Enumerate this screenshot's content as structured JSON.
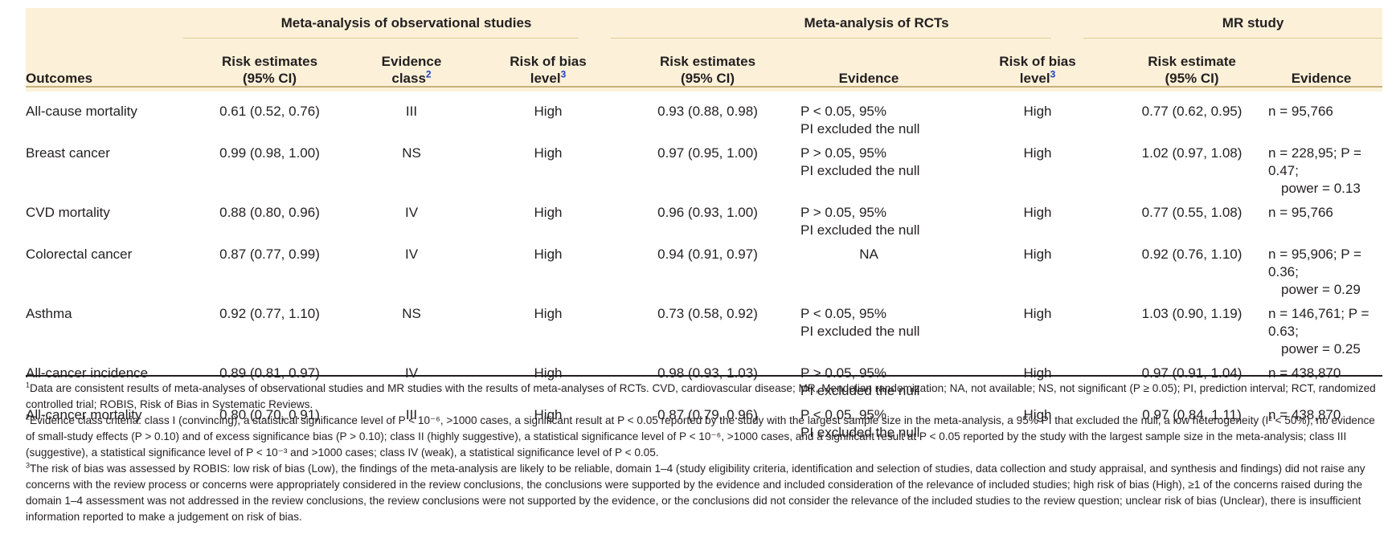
{
  "header": {
    "groups": [
      "Meta-analysis of observational studies",
      "Meta-analysis of RCTs",
      "MR study"
    ],
    "outcomes_label": "Outcomes",
    "obs": {
      "risk_estimates": "Risk estimates",
      "risk_estimates_ci": "(95% CI)",
      "evidence_class": "Evidence",
      "evidence_class_2": "class",
      "evidence_class_sup": "2",
      "risk_of_bias": "Risk of bias",
      "risk_of_bias_2": "level",
      "risk_of_bias_sup": "3"
    },
    "rct": {
      "risk_estimates": "Risk estimates",
      "risk_estimates_ci": "(95% CI)",
      "evidence": "Evidence",
      "risk_of_bias": "Risk of bias",
      "risk_of_bias_2": "level",
      "risk_of_bias_sup": "3"
    },
    "mr": {
      "risk_estimate": "Risk estimate",
      "risk_estimate_ci": "(95% CI)",
      "evidence": "Evidence"
    }
  },
  "rows": [
    {
      "outcome": "All-cause mortality",
      "obs_risk": "0.61 (0.52, 0.76)",
      "obs_class": "III",
      "obs_bias": "High",
      "rct_risk": "0.93 (0.88, 0.98)",
      "rct_ev1": "P < 0.05, 95%",
      "rct_ev2": "PI excluded the null",
      "rct_bias": "High",
      "mr_risk": "0.77 (0.62, 0.95)",
      "mr_ev1": "n = 95,766",
      "mr_ev2": ""
    },
    {
      "outcome": "Breast cancer",
      "obs_risk": "0.99 (0.98, 1.00)",
      "obs_class": "NS",
      "obs_bias": "High",
      "rct_risk": "0.97 (0.95, 1.00)",
      "rct_ev1": "P > 0.05, 95%",
      "rct_ev2": "PI excluded the null",
      "rct_bias": "High",
      "mr_risk": "1.02 (0.97, 1.08)",
      "mr_ev1": "n = 228,95; P = 0.47;",
      "mr_ev2": "power = 0.13"
    },
    {
      "outcome": "CVD mortality",
      "obs_risk": "0.88 (0.80, 0.96)",
      "obs_class": "IV",
      "obs_bias": "High",
      "rct_risk": "0.96 (0.93, 1.00)",
      "rct_ev1": "P > 0.05, 95%",
      "rct_ev2": "PI excluded the null",
      "rct_bias": "High",
      "mr_risk": "0.77 (0.55, 1.08)",
      "mr_ev1": "n = 95,766",
      "mr_ev2": ""
    },
    {
      "outcome": "Colorectal cancer",
      "obs_risk": "0.87 (0.77, 0.99)",
      "obs_class": "IV",
      "obs_bias": "High",
      "rct_risk": "0.94 (0.91, 0.97)",
      "rct_ev1": "NA",
      "rct_ev2": "",
      "rct_bias": "High",
      "mr_risk": "0.92 (0.76, 1.10)",
      "mr_ev1": "n = 95,906; P = 0.36;",
      "mr_ev2": "power = 0.29"
    },
    {
      "outcome": "Asthma",
      "obs_risk": "0.92 (0.77, 1.10)",
      "obs_class": "NS",
      "obs_bias": "High",
      "rct_risk": "0.73 (0.58, 0.92)",
      "rct_ev1": "P < 0.05, 95%",
      "rct_ev2": "PI excluded the null",
      "rct_bias": "High",
      "mr_risk": "1.03 (0.90, 1.19)",
      "mr_ev1": "n = 146,761; P = 0.63;",
      "mr_ev2": "power = 0.25"
    },
    {
      "outcome": "All-cancer incidence",
      "obs_risk": "0.89 (0.81, 0.97)",
      "obs_class": "IV",
      "obs_bias": "High",
      "rct_risk": "0.98 (0.93, 1.03)",
      "rct_ev1": "P > 0.05, 95%",
      "rct_ev2": "PI excluded the null",
      "rct_bias": "High",
      "mr_risk": "0.97 (0.91, 1.04)",
      "mr_ev1": "n = 438,870",
      "mr_ev2": ""
    },
    {
      "outcome": "All-cancer mortality",
      "obs_risk": "0.80 (0.70, 0.91)",
      "obs_class": "III",
      "obs_bias": "High",
      "rct_risk": "0.87 (0.79, 0.96)",
      "rct_ev1": "P < 0.05, 95%",
      "rct_ev2": "PI excluded the null",
      "rct_bias": "High",
      "mr_risk": "0.97 (0.84, 1.11)",
      "mr_ev1": "n = 438,870",
      "mr_ev2": ""
    }
  ],
  "footnotes": {
    "fn1_sup": "1",
    "fn1": "Data are consistent results of meta-analyses of observational studies and MR studies with the results of meta-analyses of RCTs. CVD, cardiovascular disease; MR, Mendelian randomization; NA, not available; NS, not significant (P ≥ 0.05); PI, prediction interval; RCT, randomized controlled trial; ROBIS, Risk of Bias in Systematic Reviews.",
    "fn2_sup": "2",
    "fn2": "Evidence class criteria: class I (convincing), a statistical significance level of P < 10⁻⁶, >1000 cases, a significant result at P < 0.05 reported by the study with the largest sample size in the meta-analysis, a 95% PI that excluded the null, a low heterogeneity (I² < 50%), no evidence of small-study effects (P > 0.10) and of excess significance bias (P > 0.10); class II (highly suggestive), a statistical significance level of P < 10⁻⁶, >1000 cases, and a significant result at P < 0.05 reported by the study with the largest sample size in the meta-analysis; class III (suggestive), a statistical significance level of P < 10⁻³ and >1000 cases; class IV (weak), a statistical significance level of P < 0.05.",
    "fn3_sup": "3",
    "fn3": "The risk of bias was assessed by ROBIS: low risk of bias (Low), the findings of the meta-analysis are likely to be reliable, domain 1–4 (study eligibility criteria, identification and selection of studies, data collection and study appraisal, and synthesis and findings) did not raise any concerns with the review process or concerns were appropriately considered in the review conclusions, the conclusions were supported by the evidence and included consideration of the relevance of included studies; high risk of bias (High), ≥1 of the concerns raised during the domain 1–4 assessment was not addressed in the review conclusions, the review conclusions were not supported by the evidence, or the conclusions did not consider the relevance of the included studies to the review question; unclear risk of bias (Unclear), there is insufficient information reported to make a judgement on risk of bias."
  }
}
